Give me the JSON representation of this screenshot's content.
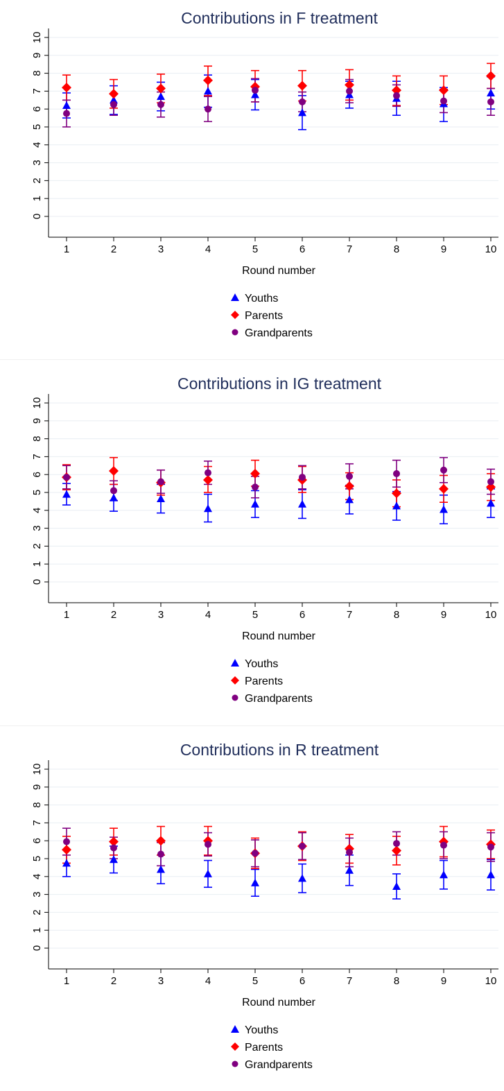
{
  "colors": {
    "youths": "#0000ff",
    "parents": "#ff0000",
    "grandparents": "#800080",
    "grid": "#e8eef3",
    "title": "#1f2d5a"
  },
  "chart_data": [
    {
      "type": "scatter",
      "title": "Contributions in F treatment",
      "xlabel": "Round number",
      "ylabel": "",
      "x": [
        1,
        2,
        3,
        4,
        5,
        6,
        7,
        8,
        9,
        10
      ],
      "xticks": [
        "1",
        "2",
        "3",
        "4",
        "5",
        "6",
        "7",
        "8",
        "9",
        "10"
      ],
      "yticks": [
        "0",
        "1",
        "2",
        "3",
        "4",
        "5",
        "6",
        "7",
        "8",
        "9",
        "10"
      ],
      "ylim": [
        0,
        10
      ],
      "grid": true,
      "legend_position": "bottom",
      "series": [
        {
          "name": "Youths",
          "marker": "triangle",
          "color": "#0000ff",
          "values": [
            6.2,
            6.5,
            6.7,
            7.0,
            6.8,
            5.8,
            6.8,
            6.6,
            6.3,
            6.9
          ],
          "lower": [
            5.5,
            5.7,
            5.9,
            6.1,
            5.95,
            4.85,
            6.05,
            5.65,
            5.3,
            6.0
          ],
          "upper": [
            6.9,
            7.3,
            7.5,
            7.9,
            7.65,
            6.75,
            7.55,
            7.55,
            7.2,
            7.8
          ]
        },
        {
          "name": "Parents",
          "marker": "diamond",
          "color": "#ff0000",
          "values": [
            7.2,
            6.85,
            7.15,
            7.6,
            7.25,
            7.3,
            7.35,
            7.05,
            7.05,
            7.85
          ],
          "lower": [
            6.5,
            6.05,
            6.35,
            6.75,
            6.4,
            6.45,
            6.5,
            6.2,
            6.25,
            7.15
          ],
          "upper": [
            7.9,
            7.65,
            7.95,
            8.4,
            8.15,
            8.15,
            8.2,
            7.85,
            7.85,
            8.55
          ]
        },
        {
          "name": "Grandparents",
          "marker": "circle",
          "color": "#800080",
          "values": [
            5.75,
            6.25,
            6.25,
            6.0,
            7.05,
            6.4,
            7.0,
            6.75,
            6.45,
            6.4
          ],
          "lower": [
            5.0,
            5.65,
            5.55,
            5.3,
            6.4,
            5.85,
            6.35,
            6.15,
            5.8,
            5.65
          ],
          "upper": [
            6.5,
            6.85,
            6.95,
            6.7,
            7.7,
            6.95,
            7.65,
            7.35,
            7.1,
            7.15
          ]
        }
      ]
    },
    {
      "type": "scatter",
      "title": "Contributions in IG treatment",
      "xlabel": "Round number",
      "ylabel": "",
      "x": [
        1,
        2,
        3,
        4,
        5,
        6,
        7,
        8,
        9,
        10
      ],
      "xticks": [
        "1",
        "2",
        "3",
        "4",
        "5",
        "6",
        "7",
        "8",
        "9",
        "10"
      ],
      "yticks": [
        "0",
        "1",
        "2",
        "3",
        "4",
        "5",
        "6",
        "7",
        "8",
        "9",
        "10"
      ],
      "ylim": [
        0,
        10
      ],
      "grid": true,
      "legend_position": "bottom",
      "series": [
        {
          "name": "Youths",
          "marker": "triangle",
          "color": "#0000ff",
          "values": [
            4.9,
            4.7,
            4.65,
            4.1,
            4.35,
            4.35,
            4.6,
            4.25,
            4.05,
            4.4
          ],
          "lower": [
            4.3,
            3.95,
            3.85,
            3.35,
            3.6,
            3.55,
            3.8,
            3.45,
            3.25,
            3.6
          ],
          "upper": [
            5.5,
            5.45,
            5.45,
            4.9,
            5.1,
            5.15,
            5.4,
            5.05,
            4.85,
            5.2
          ]
        },
        {
          "name": "Parents",
          "marker": "diamond",
          "color": "#ff0000",
          "values": [
            5.85,
            6.2,
            5.55,
            5.7,
            6.05,
            5.7,
            5.35,
            4.95,
            5.2,
            5.3
          ],
          "lower": [
            5.15,
            5.45,
            4.85,
            5.0,
            5.35,
            5.0,
            4.6,
            4.2,
            4.45,
            4.55
          ],
          "upper": [
            6.55,
            6.95,
            6.25,
            6.45,
            6.8,
            6.45,
            6.1,
            5.7,
            5.95,
            6.05
          ]
        },
        {
          "name": "Grandparents",
          "marker": "circle",
          "color": "#800080",
          "values": [
            5.85,
            5.1,
            5.6,
            6.1,
            5.3,
            5.85,
            5.9,
            6.05,
            6.25,
            5.6
          ],
          "lower": [
            5.2,
            4.55,
            4.95,
            5.45,
            4.7,
            5.2,
            5.2,
            5.3,
            5.55,
            4.9
          ],
          "upper": [
            6.5,
            5.65,
            6.25,
            6.75,
            5.9,
            6.5,
            6.6,
            6.8,
            6.95,
            6.3
          ]
        }
      ]
    },
    {
      "type": "scatter",
      "title": "Contributions in R treatment",
      "xlabel": "Round number",
      "ylabel": "",
      "x": [
        1,
        2,
        3,
        4,
        5,
        6,
        7,
        8,
        9,
        10
      ],
      "xticks": [
        "1",
        "2",
        "3",
        "4",
        "5",
        "6",
        "7",
        "8",
        "9",
        "10"
      ],
      "yticks": [
        "0",
        "1",
        "2",
        "3",
        "4",
        "5",
        "6",
        "7",
        "8",
        "9",
        "10"
      ],
      "ylim": [
        0,
        10
      ],
      "grid": true,
      "legend_position": "bottom",
      "series": [
        {
          "name": "Youths",
          "marker": "triangle",
          "color": "#0000ff",
          "values": [
            4.75,
            4.95,
            4.4,
            4.15,
            3.65,
            3.9,
            4.35,
            3.45,
            4.1,
            4.1
          ],
          "lower": [
            4.0,
            4.2,
            3.6,
            3.4,
            2.9,
            3.1,
            3.5,
            2.75,
            3.3,
            3.25
          ],
          "upper": [
            5.5,
            5.7,
            5.2,
            4.9,
            4.4,
            4.7,
            5.2,
            4.15,
            4.9,
            4.95
          ]
        },
        {
          "name": "Parents",
          "marker": "diamond",
          "color": "#ff0000",
          "values": [
            5.5,
            5.95,
            6.0,
            6.0,
            5.3,
            5.7,
            5.55,
            5.45,
            5.95,
            5.8
          ],
          "lower": [
            4.75,
            5.2,
            5.2,
            5.2,
            4.45,
            4.9,
            4.75,
            4.65,
            5.1,
            5.0
          ],
          "upper": [
            6.25,
            6.7,
            6.8,
            6.8,
            6.15,
            6.5,
            6.35,
            6.25,
            6.8,
            6.6
          ]
        },
        {
          "name": "Grandparents",
          "marker": "circle",
          "color": "#800080",
          "values": [
            5.95,
            5.6,
            5.25,
            5.8,
            5.3,
            5.7,
            5.35,
            5.85,
            5.75,
            5.65
          ],
          "lower": [
            5.2,
            5.0,
            4.6,
            5.15,
            4.55,
            4.95,
            4.55,
            5.2,
            5.0,
            4.85
          ],
          "upper": [
            6.7,
            6.2,
            5.9,
            6.45,
            6.05,
            6.45,
            6.15,
            6.5,
            6.5,
            6.45
          ]
        }
      ]
    }
  ]
}
